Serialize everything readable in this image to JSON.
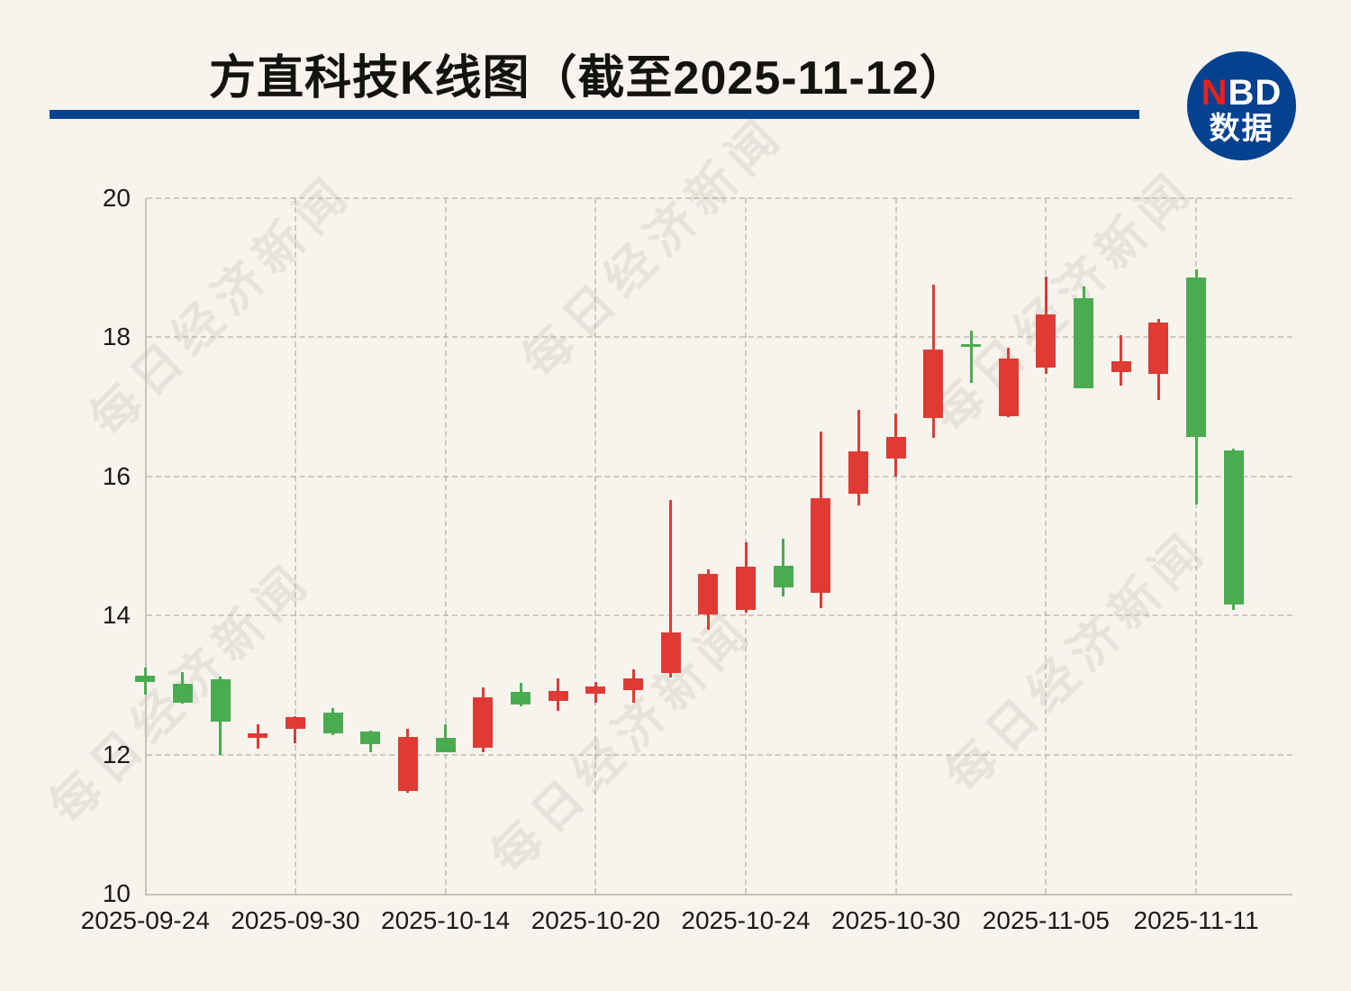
{
  "page": {
    "background_color": "#f7f4ee"
  },
  "header": {
    "title": "方直科技K线图（截至2025-11-12）",
    "underline_color": "#04418f"
  },
  "logo": {
    "n": "N",
    "bd": "BD",
    "line2": "数据",
    "bg_color": "#04418f",
    "n_color": "#e8211d",
    "text_color": "#ffffff"
  },
  "watermark": {
    "text": "每日经济新闻"
  },
  "axes": {
    "y_tick_labels": [
      "20",
      "18",
      "16",
      "14",
      "12",
      "10"
    ],
    "x_tick_labels": [
      "2025-09-24",
      "2025-09-30",
      "2025-10-14",
      "2025-10-20",
      "2025-10-24",
      "2025-10-30",
      "2025-11-05",
      "2025-11-11"
    ]
  },
  "chart_data": {
    "type": "candlestick",
    "title": "方直科技K线图（截至2025-11-12）",
    "ylim": [
      10,
      20
    ],
    "y_ticks": [
      10,
      12,
      14,
      16,
      18,
      20
    ],
    "grid": "dashed",
    "up_color": "#df3b34",
    "down_color": "#4bab51",
    "x_label_indices": [
      0,
      4,
      8,
      12,
      16,
      20,
      24,
      28
    ],
    "x_grid_indices": [
      4,
      8,
      12,
      16,
      20,
      24,
      28
    ],
    "candles": [
      {
        "date": "2025-09-24",
        "open": 13.13,
        "high": 13.25,
        "low": 12.86,
        "close": 13.05
      },
      {
        "date": "2025-09-25",
        "open": 13.02,
        "high": 13.19,
        "low": 12.73,
        "close": 12.74
      },
      {
        "date": "2025-09-26",
        "open": 13.08,
        "high": 13.12,
        "low": 12.0,
        "close": 12.47
      },
      {
        "date": "2025-09-29",
        "open": 12.24,
        "high": 12.43,
        "low": 12.08,
        "close": 12.31
      },
      {
        "date": "2025-09-30",
        "open": 12.37,
        "high": 12.55,
        "low": 12.16,
        "close": 12.54
      },
      {
        "date": "2025-10-09",
        "open": 12.6,
        "high": 12.67,
        "low": 12.28,
        "close": 12.3
      },
      {
        "date": "2025-10-10",
        "open": 12.33,
        "high": 12.35,
        "low": 12.04,
        "close": 12.15
      },
      {
        "date": "2025-10-13",
        "open": 11.48,
        "high": 12.37,
        "low": 11.45,
        "close": 12.25
      },
      {
        "date": "2025-10-14",
        "open": 12.24,
        "high": 12.43,
        "low": 12.03,
        "close": 12.04
      },
      {
        "date": "2025-10-15",
        "open": 12.1,
        "high": 12.97,
        "low": 12.03,
        "close": 12.83
      },
      {
        "date": "2025-10-16",
        "open": 12.9,
        "high": 13.03,
        "low": 12.69,
        "close": 12.72
      },
      {
        "date": "2025-10-17",
        "open": 12.77,
        "high": 13.09,
        "low": 12.63,
        "close": 12.92
      },
      {
        "date": "2025-10-20",
        "open": 12.87,
        "high": 13.05,
        "low": 12.75,
        "close": 12.98
      },
      {
        "date": "2025-10-21",
        "open": 12.93,
        "high": 13.23,
        "low": 12.75,
        "close": 13.09
      },
      {
        "date": "2025-10-22",
        "open": 13.17,
        "high": 15.66,
        "low": 13.11,
        "close": 13.76
      },
      {
        "date": "2025-10-23",
        "open": 14.01,
        "high": 14.66,
        "low": 13.79,
        "close": 14.6
      },
      {
        "date": "2025-10-24",
        "open": 14.08,
        "high": 15.05,
        "low": 14.04,
        "close": 14.7
      },
      {
        "date": "2025-10-27",
        "open": 14.72,
        "high": 15.11,
        "low": 14.27,
        "close": 14.41
      },
      {
        "date": "2025-10-28",
        "open": 14.32,
        "high": 16.65,
        "low": 14.1,
        "close": 15.69
      },
      {
        "date": "2025-10-29",
        "open": 15.75,
        "high": 16.96,
        "low": 15.58,
        "close": 16.36
      },
      {
        "date": "2025-10-30",
        "open": 16.25,
        "high": 16.9,
        "low": 16.0,
        "close": 16.57
      },
      {
        "date": "2025-10-31",
        "open": 16.84,
        "high": 18.76,
        "low": 16.56,
        "close": 17.82
      },
      {
        "date": "2025-11-03",
        "open": 17.9,
        "high": 18.1,
        "low": 17.34,
        "close": 17.86
      },
      {
        "date": "2025-11-04",
        "open": 16.86,
        "high": 17.85,
        "low": 16.85,
        "close": 17.7
      },
      {
        "date": "2025-11-05",
        "open": 17.57,
        "high": 18.87,
        "low": 17.47,
        "close": 18.33
      },
      {
        "date": "2025-11-06",
        "open": 18.56,
        "high": 18.73,
        "low": 17.27,
        "close": 17.27
      },
      {
        "date": "2025-11-07",
        "open": 17.5,
        "high": 18.03,
        "low": 17.31,
        "close": 17.65
      },
      {
        "date": "2025-11-10",
        "open": 17.47,
        "high": 18.26,
        "low": 17.1,
        "close": 18.21
      },
      {
        "date": "2025-11-11",
        "open": 18.86,
        "high": 18.98,
        "low": 15.6,
        "close": 16.57
      },
      {
        "date": "2025-11-12",
        "open": 16.37,
        "high": 16.4,
        "low": 14.08,
        "close": 14.16
      }
    ]
  }
}
